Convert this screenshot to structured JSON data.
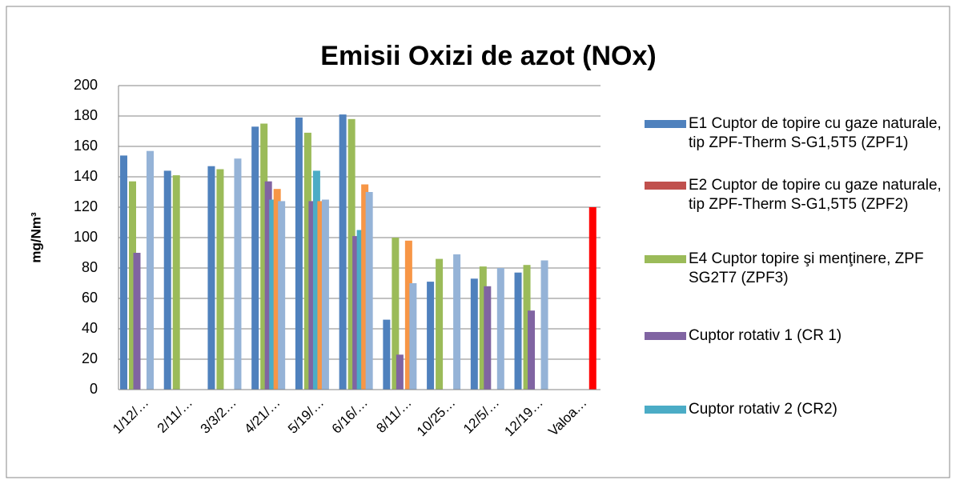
{
  "chart_data": {
    "type": "bar",
    "title": "Emisii  Oxizi de azot (NOx)",
    "y_label": "mg/Nm³",
    "categories": [
      "1/12/…",
      "2/11/…",
      "3/3/2…",
      "4/21/…",
      "5/19/…",
      "6/16/…",
      "8/11/…",
      "10/25…",
      "12/5/…",
      "12/19…",
      "Valoa…"
    ],
    "series": [
      {
        "name": "E1 Cuptor de topire cu gaze naturale,   tip ZPF-Therm S-G1,5T5   (ZPF1)",
        "color": "#4f81bd",
        "values": [
          154,
          144,
          147,
          173,
          179,
          181,
          46,
          71,
          73,
          77,
          null
        ]
      },
      {
        "name": "E2 Cuptor de topire cu gaze naturale, tip ZPF-Therm S-G1,5T5 (ZPF2)",
        "color": "#c0504d",
        "values": [
          null,
          null,
          null,
          null,
          null,
          null,
          null,
          null,
          null,
          null,
          null
        ]
      },
      {
        "name": "E4 Cuptor topire şi menţinere, ZPF SG2T7 (ZPF3)",
        "color": "#9bbb59",
        "values": [
          137,
          141,
          145,
          175,
          169,
          178,
          100,
          86,
          81,
          82,
          null
        ]
      },
      {
        "name": "Cuptor  rotativ 1 (CR 1)",
        "color": "#8064a2",
        "values": [
          90,
          null,
          null,
          137,
          124,
          101,
          23,
          null,
          68,
          52,
          null
        ]
      },
      {
        "name": "Cuptor rotativ 2 (CR2)",
        "color": "#4bacc6",
        "values": [
          null,
          null,
          null,
          125,
          144,
          105,
          null,
          null,
          null,
          null,
          null
        ]
      },
      {
        "color": "#f79646",
        "values": [
          null,
          null,
          null,
          132,
          124,
          135,
          98,
          null,
          null,
          null,
          null
        ]
      },
      {
        "color": "#95b3d7",
        "values": [
          157,
          null,
          152,
          124,
          125,
          130,
          70,
          89,
          80,
          85,
          null
        ]
      },
      {
        "color": "#ff0000",
        "values": [
          null,
          null,
          null,
          null,
          null,
          null,
          null,
          null,
          null,
          null,
          120
        ]
      }
    ],
    "ylim": [
      0,
      200
    ],
    "yticks": [
      0,
      20,
      40,
      60,
      80,
      100,
      120,
      140,
      160,
      180,
      200
    ],
    "grid": true
  }
}
